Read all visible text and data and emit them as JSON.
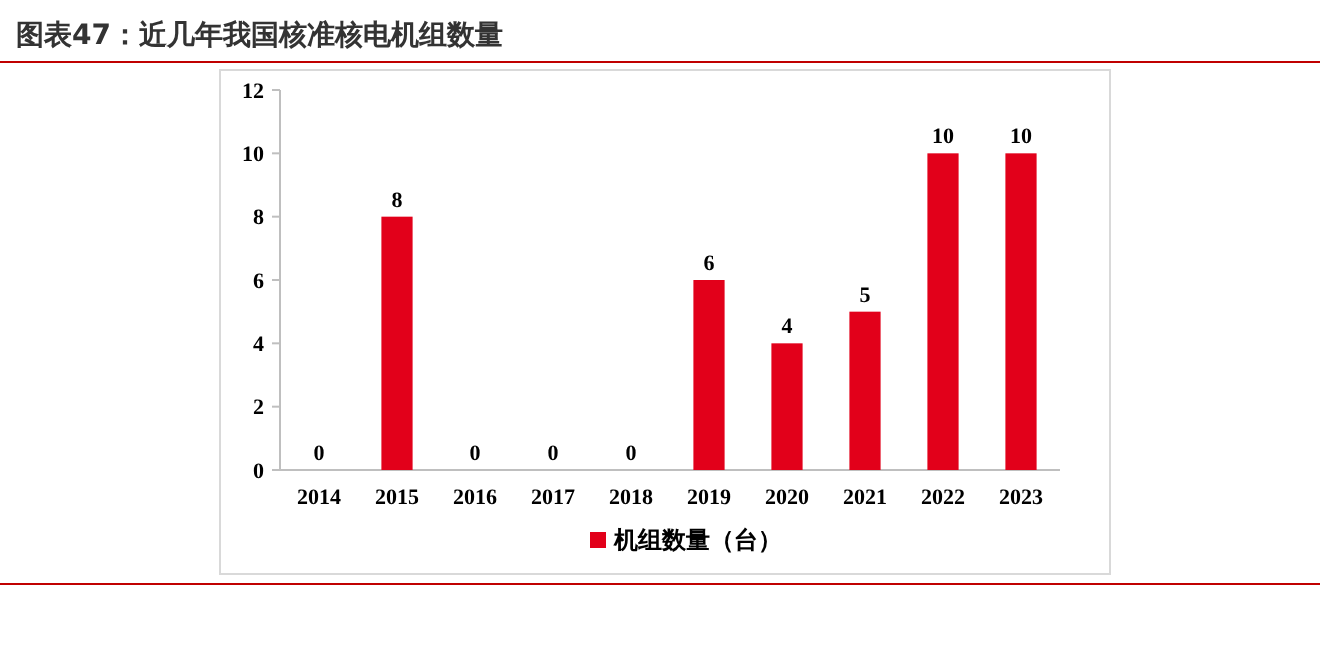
{
  "chart_data": {
    "type": "bar",
    "title": "图表47：近几年我国核准核电机组数量",
    "categories": [
      "2014",
      "2015",
      "2016",
      "2017",
      "2018",
      "2019",
      "2020",
      "2021",
      "2022",
      "2023"
    ],
    "series": [
      {
        "name": "机组数量（台）",
        "color": "#e2001a",
        "values": [
          0,
          8,
          0,
          0,
          0,
          6,
          4,
          5,
          10,
          10
        ]
      }
    ],
    "ylim": [
      0,
      12
    ],
    "yticks": [
      0,
      2,
      4,
      6,
      8,
      10,
      12
    ],
    "grid": false,
    "legend": "bottom",
    "data_labels": true
  }
}
